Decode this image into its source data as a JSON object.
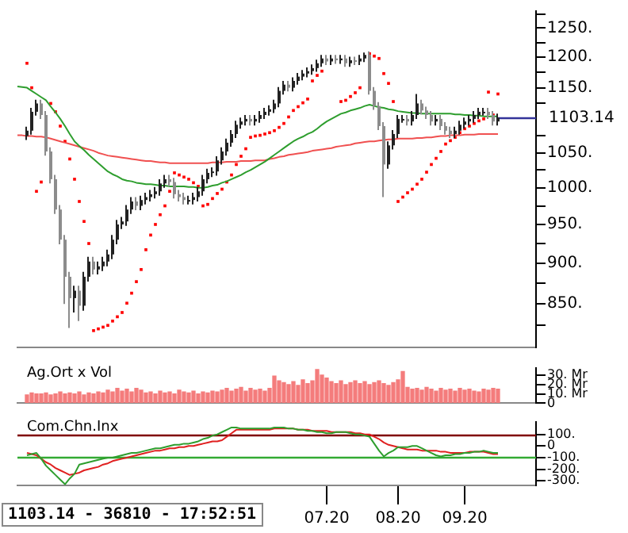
{
  "chart_data": [
    {
      "type": "candlestick",
      "colors": [
        null,
        null,
        "#222222",
        "#222222",
        "#222222",
        "#8c8c8c",
        "#8c8c8c",
        "#8c8c8c",
        "#8c8c8c",
        "#8c8c8c",
        "#8c8c8c",
        "#8c8c8c",
        "#222222",
        "#8c8c8c",
        "#222222",
        "#222222",
        "#8c8c8c",
        "#222222",
        "#222222",
        "#222222",
        "#222222",
        "#222222",
        "#222222",
        "#222222",
        "#222222",
        "#8c8c8c",
        "#222222",
        "#222222",
        "#222222",
        "#222222",
        "#222222",
        "#222222",
        "#8c8c8c",
        "#8c8c8c",
        "#8c8c8c",
        "#8c8c8c",
        "#222222",
        "#222222",
        "#222222",
        "#222222",
        "#222222",
        "#222222",
        "#222222",
        "#222222",
        "#222222",
        "#222222",
        "#222222",
        "#222222",
        "#222222",
        "#8c8c8c",
        "#222222",
        "#222222",
        "#222222",
        "#222222",
        "#222222",
        "#222222",
        "#222222",
        "#8c8c8c",
        "#222222",
        "#222222",
        "#222222",
        "#222222",
        "#222222",
        "#222222",
        "#222222",
        "#8c8c8c",
        "#222222",
        "#8c8c8c",
        "#222222",
        "#8c8c8c",
        "#222222",
        "#8c8c8c",
        "#222222",
        "#222222",
        "#8c8c8c",
        "#8c8c8c",
        "#8c8c8c",
        "#8c8c8c",
        "#222222",
        "#222222",
        "#222222",
        "#222222",
        "#8c8c8c",
        "#222222",
        "#222222",
        "#8c8c8c",
        "#8c8c8c",
        "#8c8c8c",
        "#222222",
        "#8c8c8c",
        "#8c8c8c",
        "#8c8c8c",
        "#222222",
        "#222222",
        "#222222",
        "#222222",
        "#222222",
        "#222222",
        "#222222",
        "#8c8c8c",
        "#8c8c8c",
        "#222222",
        null,
        null,
        null,
        null,
        null,
        null,
        null,
        null
      ],
      "categories": [
        null,
        null,
        null,
        null,
        null,
        null,
        null,
        null,
        null,
        null,
        null,
        null,
        null,
        null,
        null,
        null,
        null,
        null,
        null,
        null,
        null,
        null,
        null,
        null,
        null,
        null,
        null,
        null,
        null,
        null,
        null,
        null,
        null,
        null,
        null,
        null,
        null,
        null,
        null,
        null,
        null,
        null,
        null,
        null,
        null,
        null,
        null,
        null,
        null,
        null,
        null,
        null,
        null,
        null,
        null,
        null,
        null,
        null,
        null,
        null,
        null,
        null,
        null,
        null,
        null,
        "07.20",
        null,
        null,
        null,
        null,
        null,
        null,
        null,
        null,
        null,
        null,
        null,
        null,
        null,
        null,
        "08.20",
        null,
        null,
        null,
        null,
        null,
        null,
        null,
        null,
        null,
        null,
        null,
        null,
        null,
        "09.20",
        null,
        null,
        null,
        null,
        null,
        null,
        null,
        null,
        null,
        null,
        null,
        null,
        null,
        null,
        null
      ],
      "ohlc": [
        null,
        null,
        [
          1075,
          1089,
          1069,
          1083
        ],
        [
          1083,
          1118,
          1077,
          1112
        ],
        [
          1112,
          1131,
          1106,
          1125
        ],
        [
          1125,
          1131,
          1101,
          1107
        ],
        [
          1107,
          1113,
          1046,
          1052
        ],
        [
          1052,
          1058,
          1006,
          1012
        ],
        [
          1012,
          1018,
          964,
          970
        ],
        [
          970,
          976,
          924,
          930
        ],
        [
          930,
          936,
          850,
          883
        ],
        [
          883,
          889,
          822,
          857
        ],
        [
          857,
          872,
          840,
          866
        ],
        [
          866,
          872,
          830,
          848
        ],
        [
          848,
          889,
          842,
          883
        ],
        [
          883,
          908,
          877,
          902
        ],
        [
          902,
          908,
          886,
          892
        ],
        [
          892,
          902,
          886,
          896
        ],
        [
          896,
          908,
          890,
          902
        ],
        [
          902,
          917,
          896,
          911
        ],
        [
          911,
          936,
          905,
          930
        ],
        [
          930,
          956,
          924,
          950
        ],
        [
          950,
          960,
          944,
          954
        ],
        [
          954,
          976,
          948,
          970
        ],
        [
          970,
          987,
          964,
          981
        ],
        [
          981,
          987,
          969,
          975
        ],
        [
          975,
          989,
          969,
          983
        ],
        [
          983,
          993,
          977,
          987
        ],
        [
          987,
          997,
          981,
          991
        ],
        [
          991,
          1001,
          985,
          995
        ],
        [
          995,
          1012,
          989,
          1006
        ],
        [
          1006,
          1018,
          1000,
          1012
        ],
        [
          1012,
          1018,
          1002,
          1008
        ],
        [
          1008,
          1014,
          985,
          991
        ],
        [
          991,
          997,
          981,
          987
        ],
        [
          987,
          993,
          977,
          983
        ],
        [
          983,
          989,
          977,
          983
        ],
        [
          983,
          993,
          977,
          987
        ],
        [
          987,
          1001,
          981,
          995
        ],
        [
          995,
          1018,
          989,
          1012
        ],
        [
          1012,
          1027,
          1006,
          1021
        ],
        [
          1021,
          1029,
          1015,
          1023
        ],
        [
          1023,
          1045,
          1017,
          1039
        ],
        [
          1039,
          1058,
          1033,
          1052
        ],
        [
          1052,
          1071,
          1046,
          1065
        ],
        [
          1065,
          1084,
          1059,
          1078
        ],
        [
          1078,
          1098,
          1072,
          1092
        ],
        [
          1092,
          1103,
          1086,
          1097
        ],
        [
          1097,
          1107,
          1091,
          1101
        ],
        [
          1101,
          1107,
          1091,
          1097
        ],
        [
          1097,
          1107,
          1091,
          1101
        ],
        [
          1101,
          1113,
          1095,
          1107
        ],
        [
          1107,
          1118,
          1101,
          1112
        ],
        [
          1112,
          1122,
          1106,
          1116
        ],
        [
          1116,
          1131,
          1110,
          1125
        ],
        [
          1125,
          1151,
          1119,
          1145
        ],
        [
          1145,
          1161,
          1139,
          1155
        ],
        [
          1155,
          1161,
          1144,
          1150
        ],
        [
          1150,
          1167,
          1144,
          1161
        ],
        [
          1161,
          1174,
          1155,
          1168
        ],
        [
          1168,
          1179,
          1162,
          1173
        ],
        [
          1173,
          1183,
          1167,
          1177
        ],
        [
          1177,
          1188,
          1171,
          1182
        ],
        [
          1182,
          1196,
          1176,
          1190
        ],
        [
          1190,
          1204,
          1184,
          1198
        ],
        [
          1198,
          1204,
          1187,
          1193
        ],
        [
          1193,
          1204,
          1187,
          1198
        ],
        [
          1198,
          1204,
          1189,
          1195
        ],
        [
          1195,
          1204,
          1189,
          1198
        ],
        [
          1198,
          1204,
          1184,
          1190
        ],
        [
          1190,
          1201,
          1184,
          1195
        ],
        [
          1195,
          1201,
          1187,
          1193
        ],
        [
          1193,
          1204,
          1187,
          1198
        ],
        [
          1198,
          1208,
          1192,
          1204
        ],
        [
          1204,
          1210,
          1139,
          1145
        ],
        [
          1145,
          1151,
          1115,
          1121
        ],
        [
          1121,
          1127,
          1084,
          1090
        ],
        [
          1090,
          1096,
          987,
          1033
        ],
        [
          1033,
          1067,
          1027,
          1061
        ],
        [
          1061,
          1084,
          1055,
          1078
        ],
        [
          1078,
          1107,
          1072,
          1101
        ],
        [
          1101,
          1107,
          1095,
          1101
        ],
        [
          1101,
          1107,
          1091,
          1097
        ],
        [
          1097,
          1113,
          1091,
          1107
        ],
        [
          1107,
          1140,
          1101,
          1125
        ],
        [
          1125,
          1131,
          1108,
          1114
        ],
        [
          1114,
          1120,
          1101,
          1107
        ],
        [
          1107,
          1113,
          1091,
          1097
        ],
        [
          1097,
          1107,
          1091,
          1101
        ],
        [
          1101,
          1107,
          1084,
          1090
        ],
        [
          1090,
          1096,
          1077,
          1083
        ],
        [
          1083,
          1089,
          1072,
          1078
        ],
        [
          1078,
          1089,
          1072,
          1083
        ],
        [
          1083,
          1098,
          1077,
          1092
        ],
        [
          1092,
          1103,
          1086,
          1097
        ],
        [
          1097,
          1107,
          1091,
          1101
        ],
        [
          1101,
          1113,
          1095,
          1107
        ],
        [
          1107,
          1118,
          1101,
          1112
        ],
        [
          1112,
          1118,
          1106,
          1112
        ],
        [
          1112,
          1118,
          1101,
          1107
        ],
        [
          1107,
          1113,
          1091,
          1097
        ],
        [
          1097,
          1109,
          1091,
          1103
        ],
        null,
        null,
        null,
        null,
        null,
        null,
        null,
        null
      ],
      "series": [
        {
          "type": "line",
          "color": "#2e9e2e",
          "values": [
            1152,
            1151,
            1150,
            1145,
            1140,
            1135,
            1130,
            1120,
            1111,
            1101,
            1090,
            1078,
            1067,
            1060,
            1054,
            1047,
            1041,
            1035,
            1029,
            1023,
            1019,
            1016,
            1012,
            1010,
            1009,
            1007,
            1006,
            1005,
            1005,
            1004,
            1003,
            1003,
            1002,
            1002,
            1002,
            1002,
            1001,
            1001,
            1000,
            1000,
            1001,
            1003,
            1004,
            1007,
            1009,
            1012,
            1015,
            1018,
            1022,
            1025,
            1029,
            1033,
            1037,
            1042,
            1047,
            1052,
            1057,
            1062,
            1067,
            1071,
            1074,
            1078,
            1081,
            1086,
            1092,
            1097,
            1101,
            1105,
            1109,
            1111,
            1114,
            1116,
            1118,
            1121,
            1123,
            1121,
            1119,
            1118,
            1116,
            1115,
            1113,
            1112,
            1111,
            1110,
            1110,
            1109,
            1109,
            1109,
            1109,
            1109,
            1109,
            1109,
            1108,
            1108,
            1107,
            1107,
            1106,
            1106,
            1105,
            1105,
            1105,
            1105,
            null,
            null,
            null,
            null,
            null,
            null,
            null,
            null
          ]
        },
        {
          "type": "line",
          "color": "#f05050",
          "values": [
            1076,
            1076,
            1075,
            1075,
            1074,
            1074,
            1073,
            1071,
            1069,
            1067,
            1065,
            1063,
            1061,
            1059,
            1057,
            1055,
            1053,
            1050,
            1048,
            1046,
            1045,
            1044,
            1043,
            1042,
            1041,
            1040,
            1039,
            1038,
            1038,
            1037,
            1036,
            1036,
            1035,
            1035,
            1035,
            1035,
            1035,
            1035,
            1035,
            1035,
            1035,
            1036,
            1036,
            1036,
            1037,
            1037,
            1037,
            1038,
            1038,
            1038,
            1039,
            1039,
            1039,
            1041,
            1042,
            1044,
            1045,
            1047,
            1048,
            1049,
            1050,
            1051,
            1053,
            1054,
            1055,
            1056,
            1057,
            1059,
            1060,
            1061,
            1062,
            1064,
            1065,
            1066,
            1067,
            1067,
            1068,
            1069,
            1070,
            1070,
            1071,
            1071,
            1071,
            1071,
            1072,
            1072,
            1073,
            1073,
            1074,
            1075,
            1075,
            1076,
            1076,
            1076,
            1077,
            1077,
            1077,
            1078,
            1078,
            1078,
            1078,
            1078,
            null,
            null,
            null,
            null,
            null,
            null,
            null,
            null
          ]
        },
        {
          "type": "scatter",
          "color": "#ff0000",
          "marker": "square",
          "values": [
            null,
            null,
            1190,
            1150,
            995,
            1008,
            null,
            1125,
            1112,
            1090,
            1067,
            1041,
            1012,
            981,
            954,
            925,
            819,
            821,
            823,
            825,
            830,
            835,
            840,
            851,
            863,
            877,
            892,
            917,
            936,
            950,
            963,
            975,
            995,
            1021,
            1018,
            1015,
            1012,
            1007,
            1002,
            975,
            977,
            985,
            992,
            998,
            1008,
            1018,
            1033,
            1045,
            1056,
            1073,
            1075,
            1076,
            1078,
            1080,
            1083,
            1088,
            1094,
            1104,
            1114,
            1120,
            1126,
            1132,
            1161,
            1170,
            1177,
            null,
            null,
            null,
            1128,
            1130,
            1136,
            1142,
            1150,
            null,
            1206,
            1202,
            1198,
            1173,
            1157,
            1128,
            981,
            987,
            993,
            998,
            1005,
            1012,
            1022,
            1033,
            1042,
            1052,
            1063,
            1068,
            1073,
            1080,
            1086,
            1090,
            1094,
            1098,
            1101,
            1143,
            1107,
            1140,
            null,
            null,
            null,
            null,
            null,
            null,
            null,
            null
          ]
        }
      ],
      "ref_lines": [
        {
          "axis": "y",
          "value": 1103.14,
          "label": "1103.14",
          "color": "#333399"
        }
      ],
      "log": true,
      "ylim": [
        800,
        1280
      ],
      "tick_labels": "y",
      "yticks": [
        {
          "value": 825,
          "label": null
        },
        {
          "value": 850,
          "label": "850."
        },
        {
          "value": 875,
          "label": null
        },
        {
          "value": 900,
          "label": "900."
        },
        {
          "value": 925,
          "label": null
        },
        {
          "value": 950,
          "label": "950."
        },
        {
          "value": 975,
          "label": null
        },
        {
          "value": 1000,
          "label": "1000."
        },
        {
          "value": 1025,
          "label": null
        },
        {
          "value": 1050,
          "label": "1050."
        },
        {
          "value": 1075,
          "label": null
        },
        {
          "value": 1125,
          "label": null
        },
        {
          "value": 1150,
          "label": "1150."
        },
        {
          "value": 1175,
          "label": null
        },
        {
          "value": 1200,
          "label": "1200."
        },
        {
          "value": 1225,
          "label": null
        },
        {
          "value": 1250,
          "label": "1250."
        },
        {
          "value": 1275,
          "label": null
        }
      ]
    },
    {
      "type": "bar",
      "title": "Ag.Ort x Vol",
      "color": "#f47c7c",
      "categories": [
        null,
        null,
        null,
        null,
        null,
        null,
        null,
        null,
        null,
        null,
        null,
        null,
        null,
        null,
        null,
        null,
        null,
        null,
        null,
        null,
        null,
        null,
        null,
        null,
        null,
        null,
        null,
        null,
        null,
        null,
        null,
        null,
        null,
        null,
        null,
        null,
        null,
        null,
        null,
        null,
        null,
        null,
        null,
        null,
        null,
        null,
        null,
        null,
        null,
        null,
        null,
        null,
        null,
        null,
        null,
        null,
        null,
        null,
        null,
        null,
        null,
        null,
        null,
        null,
        null,
        "07.20",
        null,
        null,
        null,
        null,
        null,
        null,
        null,
        null,
        null,
        null,
        null,
        null,
        null,
        null,
        "08.20",
        null,
        null,
        null,
        null,
        null,
        null,
        null,
        null,
        null,
        null,
        null,
        null,
        null,
        "09.20",
        null,
        null,
        null,
        null,
        null,
        null,
        null,
        null,
        null,
        null,
        null,
        null,
        null,
        null,
        null
      ],
      "values": [
        null,
        null,
        9,
        11,
        10,
        10,
        11,
        9,
        10,
        12,
        10,
        11,
        10,
        12,
        9,
        11,
        10,
        12,
        11,
        14,
        12,
        16,
        13,
        15,
        12,
        16,
        14,
        11,
        12,
        10,
        13,
        11,
        12,
        10,
        14,
        12,
        11,
        13,
        10,
        12,
        11,
        13,
        12,
        14,
        16,
        13,
        15,
        17,
        13,
        16,
        14,
        15,
        13,
        16,
        29,
        24,
        22,
        20,
        23,
        19,
        25,
        21,
        24,
        36,
        30,
        27,
        23,
        21,
        24,
        20,
        22,
        24,
        21,
        23,
        20,
        22,
        24,
        21,
        19,
        22,
        25,
        34,
        17,
        15,
        16,
        14,
        17,
        15,
        13,
        16,
        14,
        15,
        13,
        16,
        14,
        15,
        13,
        12,
        15,
        14,
        16,
        15,
        null,
        null,
        null,
        null,
        null,
        null,
        null,
        null
      ],
      "ylim": [
        0,
        38
      ],
      "tick_labels": "y",
      "yticks": [
        0,
        {
          "value": 10,
          "label": "10. Mr"
        },
        {
          "value": 20,
          "label": "20. Mr"
        },
        {
          "value": 30,
          "label": "30. Mr"
        }
      ]
    },
    {
      "type": "line",
      "title": "Com.Chn.Inx",
      "categories": [
        null,
        null,
        null,
        null,
        null,
        null,
        null,
        null,
        null,
        null,
        null,
        null,
        null,
        null,
        null,
        null,
        null,
        null,
        null,
        null,
        null,
        null,
        null,
        null,
        null,
        null,
        null,
        null,
        null,
        null,
        null,
        null,
        null,
        null,
        null,
        null,
        null,
        null,
        null,
        null,
        null,
        null,
        null,
        null,
        null,
        null,
        null,
        null,
        null,
        null,
        null,
        null,
        null,
        null,
        null,
        null,
        null,
        null,
        null,
        null,
        null,
        null,
        null,
        null,
        null,
        "07.20",
        null,
        null,
        null,
        null,
        null,
        null,
        null,
        null,
        null,
        null,
        null,
        null,
        null,
        null,
        "08.20",
        null,
        null,
        null,
        null,
        null,
        null,
        null,
        null,
        null,
        null,
        null,
        null,
        null,
        "09.20",
        null,
        null,
        null,
        null,
        null,
        null,
        null,
        null,
        null,
        null,
        null,
        null,
        null,
        null,
        null
      ],
      "series": [
        {
          "type": "line",
          "color": "#2e9e2e",
          "values": [
            null,
            null,
            -80,
            -70,
            -60,
            -110,
            -170,
            -210,
            -250,
            -290,
            -330,
            -280,
            -240,
            -160,
            -150,
            -140,
            -130,
            -120,
            -110,
            -100,
            -100,
            -90,
            -80,
            -70,
            -60,
            -60,
            -50,
            -40,
            -30,
            -20,
            -20,
            -10,
            0,
            10,
            10,
            20,
            20,
            30,
            40,
            60,
            70,
            90,
            100,
            120,
            140,
            160,
            160,
            150,
            150,
            150,
            150,
            150,
            150,
            150,
            160,
            160,
            160,
            150,
            150,
            140,
            140,
            130,
            130,
            120,
            120,
            110,
            110,
            120,
            120,
            120,
            110,
            100,
            100,
            90,
            80,
            20,
            -40,
            -90,
            -60,
            -40,
            -10,
            -10,
            -10,
            0,
            0,
            -20,
            -40,
            -60,
            -80,
            -90,
            -80,
            -80,
            -70,
            -70,
            -60,
            -60,
            -50,
            -50,
            -40,
            -50,
            -60,
            -60,
            null,
            null,
            null,
            null,
            null,
            null,
            null,
            null
          ]
        },
        {
          "type": "line",
          "color": "#e02020",
          "values": [
            null,
            null,
            -60,
            -70,
            -80,
            -110,
            -140,
            -160,
            -190,
            -210,
            -230,
            -250,
            -240,
            -230,
            -210,
            -200,
            -190,
            -180,
            -160,
            -150,
            -130,
            -120,
            -110,
            -100,
            -90,
            -80,
            -70,
            -60,
            -50,
            -40,
            -40,
            -30,
            -20,
            -20,
            -10,
            -10,
            0,
            0,
            10,
            20,
            30,
            40,
            40,
            50,
            80,
            110,
            140,
            140,
            140,
            140,
            140,
            140,
            140,
            140,
            150,
            150,
            150,
            150,
            150,
            140,
            140,
            140,
            130,
            130,
            130,
            130,
            120,
            120,
            120,
            120,
            120,
            110,
            110,
            100,
            100,
            80,
            60,
            30,
            10,
            0,
            -10,
            -20,
            -30,
            -30,
            -30,
            -40,
            -40,
            -40,
            -40,
            -50,
            -50,
            -60,
            -60,
            -60,
            -60,
            -50,
            -50,
            -50,
            -50,
            -60,
            -70,
            -70,
            null,
            null,
            null,
            null,
            null,
            null,
            null,
            null
          ]
        }
      ],
      "ref_lines": [
        {
          "axis": "y",
          "value": 100,
          "color": "#800000"
        },
        {
          "axis": "y",
          "value": -100,
          "color": "#33aa33"
        }
      ],
      "ylim": [
        -340,
        210
      ],
      "yticks": [
        {
          "value": -300,
          "label": "-300."
        },
        {
          "value": -200,
          "label": "-200."
        },
        {
          "value": -100,
          "label": "-100."
        },
        0,
        {
          "value": 100,
          "label": "100."
        }
      ],
      "annotations": [
        "1103.14 - 36810 - 17:52:51"
      ]
    }
  ]
}
